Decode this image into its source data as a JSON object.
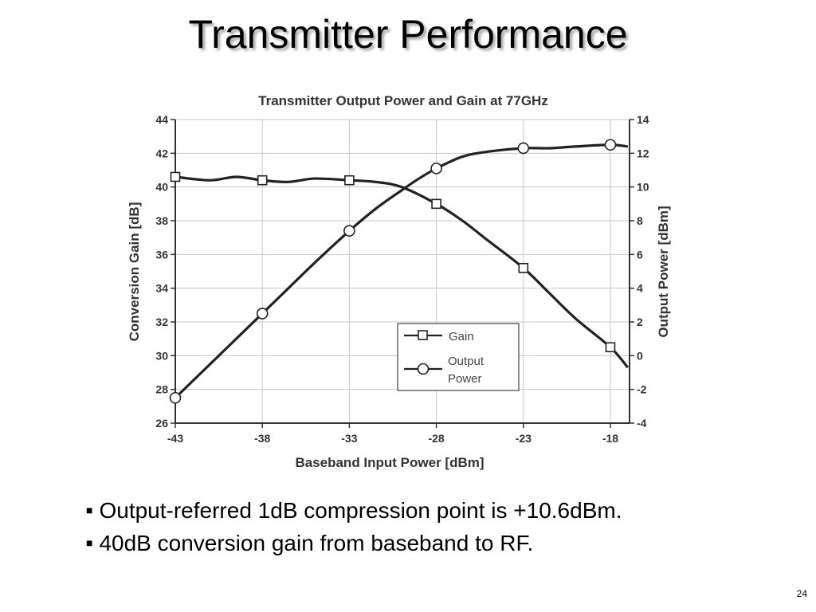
{
  "slide": {
    "title": "Transmitter Performance",
    "page_number": "24"
  },
  "bullets": [
    "Output-referred 1dB compression point is +10.6dBm.",
    "40dB conversion gain from baseband to RF."
  ],
  "chart_data": {
    "type": "line",
    "title": "Transmitter Output Power and Gain at 77GHz",
    "xlabel": "Baseband Input Power [dBm]",
    "ylabel_left": "Conversion Gain [dB]",
    "ylabel_right": "Output Power [dBm]",
    "xlim": [
      -43,
      -16.9
    ],
    "ylim_left": [
      26,
      44
    ],
    "ylim_right": [
      -4,
      14
    ],
    "xticks": [
      "-43",
      "-38",
      "-33",
      "-28",
      "-23",
      "-18"
    ],
    "yticks_left": [
      "26",
      "28",
      "30",
      "32",
      "34",
      "36",
      "38",
      "40",
      "42",
      "44"
    ],
    "yticks_right": [
      "-4",
      "-2",
      "0",
      "2",
      "4",
      "6",
      "8",
      "10",
      "12",
      "14"
    ],
    "grid": true,
    "legend_position": "lower-right",
    "series": [
      {
        "name": "Gain",
        "axis": "left",
        "marker": "square",
        "color": "#222222",
        "markers": {
          "x": [
            -43,
            -38,
            -33,
            -28,
            -23,
            -18
          ],
          "y": [
            40.6,
            40.4,
            40.4,
            39.0,
            35.2,
            30.5
          ]
        },
        "curve": {
          "x": [
            -43,
            -41,
            -39.5,
            -38,
            -36.5,
            -35,
            -33,
            -31.5,
            -30,
            -28,
            -26.5,
            -25,
            -23,
            -21.5,
            -20,
            -18,
            -17
          ],
          "y": [
            40.6,
            40.4,
            40.6,
            40.4,
            40.3,
            40.5,
            40.4,
            40.3,
            40.0,
            39.0,
            38.0,
            36.8,
            35.2,
            33.7,
            32.2,
            30.5,
            29.3
          ]
        }
      },
      {
        "name": "Output Power",
        "axis": "right",
        "marker": "circle",
        "color": "#222222",
        "markers": {
          "x": [
            -43,
            -38,
            -33,
            -28,
            -23,
            -18
          ],
          "y": [
            -2.5,
            2.5,
            7.4,
            11.1,
            12.3,
            12.5
          ]
        },
        "curve": {
          "x": [
            -43,
            -41.5,
            -40,
            -38,
            -36.5,
            -35,
            -33,
            -31.5,
            -30,
            -29,
            -28,
            -26.5,
            -25,
            -23,
            -21.5,
            -20,
            -18,
            -17
          ],
          "y": [
            -2.5,
            -1.0,
            0.5,
            2.5,
            4.0,
            5.5,
            7.4,
            8.7,
            9.8,
            10.5,
            11.1,
            11.8,
            12.1,
            12.3,
            12.3,
            12.4,
            12.5,
            12.4
          ]
        }
      }
    ]
  }
}
